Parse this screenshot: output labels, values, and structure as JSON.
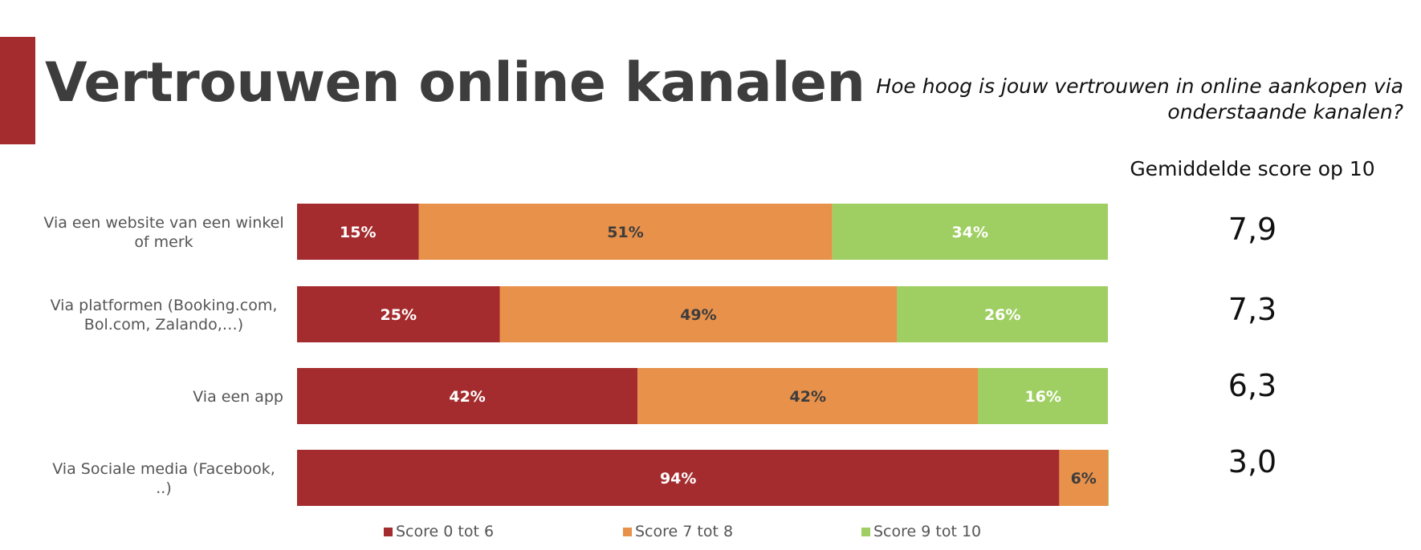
{
  "title": "Vertrouwen online kanalen",
  "question": "Hoe hoog is jouw vertrouwen in online aankopen via onderstaande kanalen?",
  "average_header": "Gemiddelde score op 10",
  "colors": {
    "accent": "#a52c2e",
    "low": "#a52c2e",
    "mid": "#e8914a",
    "high": "#9fcf62"
  },
  "chart_data": {
    "type": "bar",
    "orientation": "horizontal",
    "stacked": true,
    "categories": [
      "Via een website van een winkel of merk",
      "Via platformen (Booking.com, Bol.com, Zalando,…)",
      "Via een app",
      "Via Sociale media (Facebook, ..)"
    ],
    "series": [
      {
        "name": "Score 0 tot 6",
        "values": [
          15,
          25,
          42,
          94
        ],
        "labels": [
          "15%",
          "25%",
          "42%",
          "94%"
        ],
        "color": "#a52c2e",
        "label_color": "#ffffff"
      },
      {
        "name": "Score 7 tot 8",
        "values": [
          51,
          49,
          42,
          6
        ],
        "labels": [
          "51%",
          "49%",
          "42%",
          "6%"
        ],
        "color": "#e8914a",
        "label_color": "#3d3d3d"
      },
      {
        "name": "Score 9 tot 10",
        "values": [
          34,
          26,
          16,
          0
        ],
        "labels": [
          "34%",
          "26%",
          "16%",
          ""
        ],
        "color": "#9fcf62",
        "label_color": "#ffffff"
      }
    ],
    "xlim": [
      0,
      100
    ],
    "average_scores": [
      "7,9",
      "7,3",
      "6,3",
      "3,0"
    ],
    "legend_position": "bottom"
  }
}
